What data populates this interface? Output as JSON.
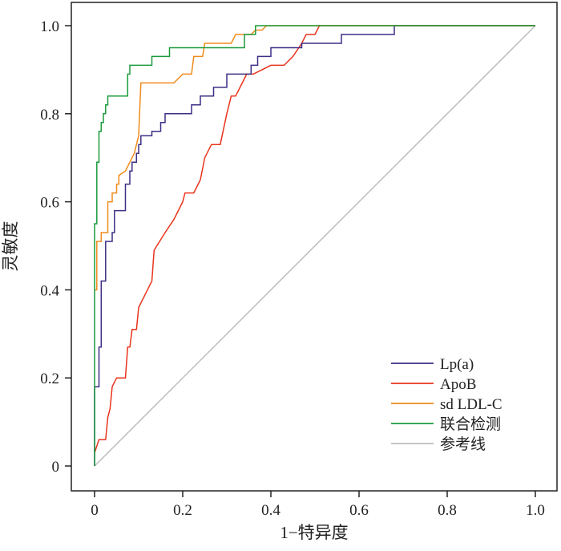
{
  "chart_data": {
    "type": "line",
    "xlabel": "1−特异度",
    "ylabel": "灵敏度",
    "xlim": [
      0,
      1
    ],
    "ylim": [
      0,
      1
    ],
    "xticks": [
      "0",
      "0.2",
      "0.4",
      "0.6",
      "0.8",
      "1.0"
    ],
    "yticks": [
      "0",
      "0.2",
      "0.4",
      "0.6",
      "0.8",
      "1.0"
    ],
    "grid": false,
    "legend_position": "bottom-right",
    "series": [
      {
        "name": "Lp(a)",
        "color": "#3c2f85",
        "points": [
          [
            0,
            0
          ],
          [
            0,
            0.18
          ],
          [
            0.01,
            0.18
          ],
          [
            0.01,
            0.27
          ],
          [
            0.015,
            0.27
          ],
          [
            0.015,
            0.42
          ],
          [
            0.025,
            0.42
          ],
          [
            0.025,
            0.51
          ],
          [
            0.04,
            0.51
          ],
          [
            0.04,
            0.53
          ],
          [
            0.045,
            0.53
          ],
          [
            0.045,
            0.58
          ],
          [
            0.07,
            0.58
          ],
          [
            0.07,
            0.64
          ],
          [
            0.08,
            0.64
          ],
          [
            0.08,
            0.67
          ],
          [
            0.085,
            0.67
          ],
          [
            0.085,
            0.69
          ],
          [
            0.095,
            0.69
          ],
          [
            0.095,
            0.71
          ],
          [
            0.1,
            0.71
          ],
          [
            0.1,
            0.73
          ],
          [
            0.105,
            0.73
          ],
          [
            0.105,
            0.75
          ],
          [
            0.13,
            0.75
          ],
          [
            0.13,
            0.76
          ],
          [
            0.15,
            0.76
          ],
          [
            0.15,
            0.78
          ],
          [
            0.16,
            0.78
          ],
          [
            0.16,
            0.8
          ],
          [
            0.22,
            0.8
          ],
          [
            0.22,
            0.82
          ],
          [
            0.24,
            0.82
          ],
          [
            0.24,
            0.84
          ],
          [
            0.27,
            0.84
          ],
          [
            0.27,
            0.86
          ],
          [
            0.3,
            0.86
          ],
          [
            0.3,
            0.89
          ],
          [
            0.355,
            0.89
          ],
          [
            0.355,
            0.91
          ],
          [
            0.37,
            0.91
          ],
          [
            0.37,
            0.93
          ],
          [
            0.4,
            0.93
          ],
          [
            0.4,
            0.95
          ],
          [
            0.47,
            0.95
          ],
          [
            0.47,
            0.96
          ],
          [
            0.56,
            0.96
          ],
          [
            0.56,
            0.98
          ],
          [
            0.68,
            0.98
          ],
          [
            0.68,
            1.0
          ],
          [
            1.0,
            1.0
          ]
        ]
      },
      {
        "name": "ApoB",
        "color": "#e8341c",
        "points": [
          [
            0,
            0.03
          ],
          [
            0.01,
            0.06
          ],
          [
            0.025,
            0.06
          ],
          [
            0.03,
            0.11
          ],
          [
            0.035,
            0.13
          ],
          [
            0.04,
            0.18
          ],
          [
            0.05,
            0.2
          ],
          [
            0.07,
            0.2
          ],
          [
            0.075,
            0.27
          ],
          [
            0.08,
            0.27
          ],
          [
            0.085,
            0.31
          ],
          [
            0.095,
            0.31
          ],
          [
            0.1,
            0.36
          ],
          [
            0.11,
            0.38
          ],
          [
            0.12,
            0.4
          ],
          [
            0.13,
            0.42
          ],
          [
            0.135,
            0.49
          ],
          [
            0.16,
            0.53
          ],
          [
            0.18,
            0.56
          ],
          [
            0.2,
            0.6
          ],
          [
            0.205,
            0.62
          ],
          [
            0.225,
            0.62
          ],
          [
            0.24,
            0.65
          ],
          [
            0.25,
            0.7
          ],
          [
            0.265,
            0.73
          ],
          [
            0.285,
            0.73
          ],
          [
            0.3,
            0.8
          ],
          [
            0.31,
            0.84
          ],
          [
            0.32,
            0.84
          ],
          [
            0.335,
            0.87
          ],
          [
            0.345,
            0.89
          ],
          [
            0.36,
            0.89
          ],
          [
            0.38,
            0.9
          ],
          [
            0.4,
            0.91
          ],
          [
            0.43,
            0.91
          ],
          [
            0.45,
            0.93
          ],
          [
            0.47,
            0.96
          ],
          [
            0.48,
            0.98
          ],
          [
            0.5,
            0.98
          ],
          [
            0.51,
            1.0
          ],
          [
            1.0,
            1.0
          ]
        ]
      },
      {
        "name": "sd LDL-C",
        "color": "#f08b1d",
        "points": [
          [
            0,
            0.4
          ],
          [
            0.005,
            0.4
          ],
          [
            0.005,
            0.51
          ],
          [
            0.015,
            0.51
          ],
          [
            0.015,
            0.53
          ],
          [
            0.03,
            0.53
          ],
          [
            0.03,
            0.6
          ],
          [
            0.04,
            0.6
          ],
          [
            0.04,
            0.62
          ],
          [
            0.05,
            0.62
          ],
          [
            0.05,
            0.64
          ],
          [
            0.055,
            0.64
          ],
          [
            0.055,
            0.66
          ],
          [
            0.07,
            0.67
          ],
          [
            0.08,
            0.69
          ],
          [
            0.09,
            0.71
          ],
          [
            0.1,
            0.75
          ],
          [
            0.105,
            0.87
          ],
          [
            0.18,
            0.87
          ],
          [
            0.2,
            0.89
          ],
          [
            0.22,
            0.89
          ],
          [
            0.225,
            0.93
          ],
          [
            0.245,
            0.93
          ],
          [
            0.25,
            0.96
          ],
          [
            0.31,
            0.96
          ],
          [
            0.32,
            0.98
          ],
          [
            0.355,
            0.98
          ],
          [
            0.365,
            0.99
          ],
          [
            0.38,
            0.99
          ],
          [
            0.39,
            1.0
          ],
          [
            1.0,
            1.0
          ]
        ]
      },
      {
        "name": "联合检测",
        "color": "#1a9b3c",
        "points": [
          [
            0,
            0
          ],
          [
            0,
            0.55
          ],
          [
            0.005,
            0.55
          ],
          [
            0.005,
            0.69
          ],
          [
            0.01,
            0.69
          ],
          [
            0.01,
            0.76
          ],
          [
            0.015,
            0.76
          ],
          [
            0.015,
            0.78
          ],
          [
            0.02,
            0.78
          ],
          [
            0.02,
            0.8
          ],
          [
            0.025,
            0.8
          ],
          [
            0.025,
            0.82
          ],
          [
            0.03,
            0.82
          ],
          [
            0.03,
            0.84
          ],
          [
            0.075,
            0.84
          ],
          [
            0.075,
            0.89
          ],
          [
            0.08,
            0.89
          ],
          [
            0.08,
            0.91
          ],
          [
            0.13,
            0.91
          ],
          [
            0.13,
            0.93
          ],
          [
            0.17,
            0.93
          ],
          [
            0.17,
            0.95
          ],
          [
            0.34,
            0.95
          ],
          [
            0.34,
            0.98
          ],
          [
            0.365,
            0.98
          ],
          [
            0.365,
            1.0
          ],
          [
            1.0,
            1.0
          ]
        ]
      },
      {
        "name": "参考线",
        "color": "#bdbdbd",
        "points": [
          [
            0,
            0
          ],
          [
            1,
            1
          ]
        ]
      }
    ]
  }
}
